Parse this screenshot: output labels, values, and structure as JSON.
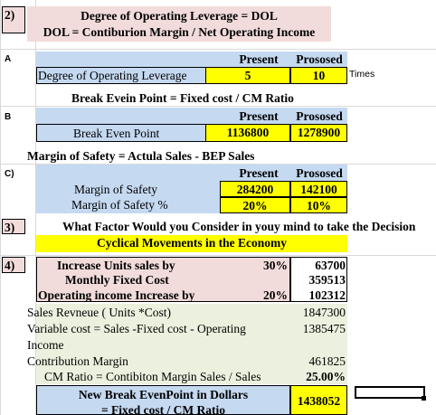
{
  "s2": {
    "num": "2)",
    "title1": "Degree of Operating Leverage = DOL",
    "title2": "DOL = Contiburion Margin / Net Operating Income"
  },
  "sA": {
    "label": "A",
    "hdr_present": "Present",
    "hdr_proposed": "Prososed",
    "row_label": "Degree of Operating Leverage",
    "present": "5",
    "proposed": "10",
    "unit": "Times"
  },
  "sB": {
    "title": "Break Evein Point = Fixed cost / CM Ratio",
    "label": "B",
    "hdr_present": "Present",
    "hdr_proposed": "Prososed",
    "row_label": "Break Even Point",
    "present": "1136800",
    "proposed": "1278900"
  },
  "sC": {
    "title": "Margin of Safety = Actula Sales - BEP Sales",
    "label": "C)",
    "hdr_present": "Present",
    "hdr_proposed": "Prososed",
    "row1_label": "Margin of Safety",
    "row1_present": "284200",
    "row1_proposed": "142100",
    "row2_label": "Margin of Safety %",
    "row2_present": "20%",
    "row2_proposed": "10%"
  },
  "s3": {
    "num": "3)",
    "question": "What Factor Would you Consider in youy mind to take the Decision",
    "answer": "Cyclical Movements in the Economy"
  },
  "s4": {
    "num": "4)",
    "row1_label": "Increase Units sales by",
    "row1_pct": "30%",
    "row1_value": "63700",
    "row2_label": "Monthly Fixed Cost",
    "row2_value": "359513",
    "row3_label": "Operating income Increase  by",
    "row3_pct": "20%",
    "row3_value": "102312",
    "row4_label": "Sales Revneue ( Units *Cost)",
    "row4_value": "1847300",
    "row5_label": "Variable cost = Sales -Fixed cost - Operating",
    "row5_value": "1385475",
    "row6_label": "Income",
    "row7_label": "Contribution Margin",
    "row7_value": "461825",
    "row8_label": "CM Ratio = Contibiton Margin Sales / Sales",
    "row8_value": "25.00%",
    "nbe_label1": "New Break EvenPoint in Dollars",
    "nbe_label2": "= Fixed cost / CM Ratio",
    "nbe_value": "1438052"
  }
}
